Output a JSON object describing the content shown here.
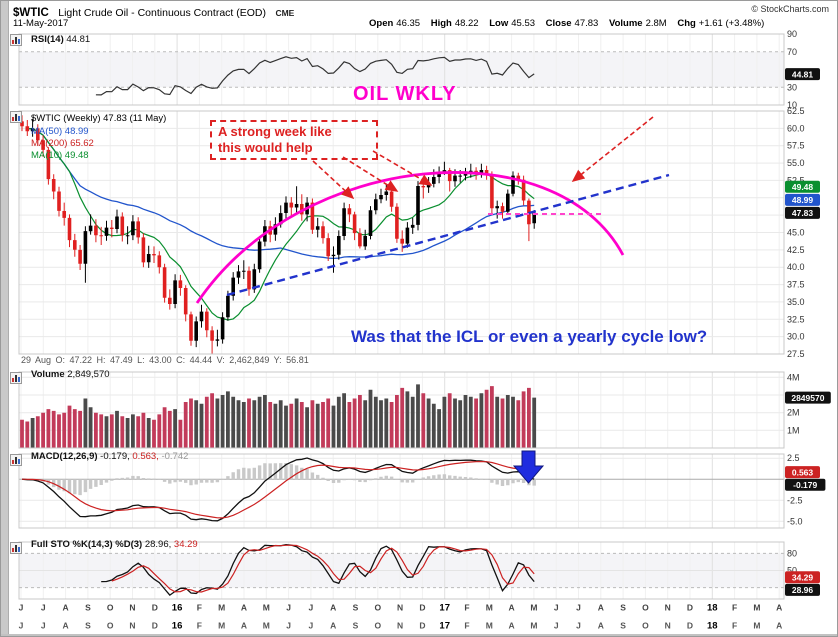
{
  "header": {
    "symbol": "$WTIC",
    "title": "Light Crude Oil - Continuous Contract (EOD)",
    "exchange": "CME",
    "copyright": "© StockCharts.com",
    "date": "11-May-2017",
    "quote": {
      "open_label": "Open",
      "open": "46.35",
      "high_label": "High",
      "high": "48.22",
      "low_label": "Low",
      "low": "45.53",
      "close_label": "Close",
      "close": "47.83",
      "volume_label": "Volume",
      "volume": "2.8M",
      "chg_label": "Chg",
      "chg": "+1.61 (+3.48%)"
    }
  },
  "rsi_panel": {
    "label": "RSI(14)",
    "value": "44.81"
  },
  "main_panel": {
    "legend_symbol": "$WTIC (Weekly) 47.83 (11 May)",
    "legend_ma50": "MA(50) 48.99",
    "legend_ma200": "MA(200) 65.62",
    "legend_ma10": "MA(10) 49.48"
  },
  "inspector": {
    "text": "29 Aug O: 47.22 H: 47.49 L: 43.00 C: 44.44 V: 2,462,849 Y: 56.81"
  },
  "volume_panel": {
    "label": "Volume",
    "value": "2,849,570"
  },
  "macd_panel": {
    "label": "MACD(12,26,9)",
    "v1": "-0.179,",
    "v2": "0.563,",
    "v3": "-0.742"
  },
  "sto_panel": {
    "label": "Full STO %K(14,3) %D(3)",
    "v1": "28.96,",
    "v2": "34.29"
  },
  "annotations": {
    "oil_wkly": "OIL WKLY",
    "strong_week_line1": "A strong week like",
    "strong_week_line2": "this would help",
    "icl_question": "Was that the ICL or even a yearly cycle low?"
  },
  "axes": {
    "rsi": {
      "labels": [
        {
          "t": "90",
          "v": 90
        },
        {
          "t": "70",
          "v": 70
        },
        {
          "t": "30",
          "v": 30
        },
        {
          "t": "10",
          "v": 10
        }
      ],
      "badges": [
        {
          "t": "44.81",
          "c": "#111111",
          "v": 44.81
        }
      ]
    },
    "main": {
      "labels": [
        {
          "t": "62.5",
          "v": 62.5
        },
        {
          "t": "60.0",
          "v": 60
        },
        {
          "t": "57.5",
          "v": 57.5
        },
        {
          "t": "55.0",
          "v": 55
        },
        {
          "t": "52.5",
          "v": 52.5
        },
        {
          "t": "45.0",
          "v": 45
        },
        {
          "t": "42.5",
          "v": 42.5
        },
        {
          "t": "40.0",
          "v": 40
        },
        {
          "t": "37.5",
          "v": 37.5
        },
        {
          "t": "35.0",
          "v": 35
        },
        {
          "t": "32.5",
          "v": 32.5
        },
        {
          "t": "30.0",
          "v": 30
        },
        {
          "t": "27.5",
          "v": 27.5
        }
      ],
      "badges": [
        {
          "t": "49.48",
          "c": "#0a8f2f",
          "v": 51.6
        },
        {
          "t": "48.99",
          "c": "#2255cc",
          "v": 49.7
        },
        {
          "t": "47.83",
          "c": "#111111",
          "v": 47.83
        }
      ]
    },
    "vol": {
      "labels": [
        {
          "t": "4M",
          "v": 4
        },
        {
          "t": "2M",
          "v": 2
        },
        {
          "t": "1M",
          "v": 1
        }
      ],
      "badges": [
        {
          "t": "2849570",
          "c": "#111111",
          "v": 2.85
        }
      ]
    },
    "macd": {
      "labels": [
        {
          "t": "2.5",
          "v": 2.5
        },
        {
          "t": "-2.5",
          "v": -2.5
        },
        {
          "t": "-5.0",
          "v": -5
        }
      ],
      "badges": [
        {
          "t": "0.563",
          "c": "#cc2222",
          "v": 0.85
        },
        {
          "t": "-0.179",
          "c": "#111111",
          "v": -0.65
        }
      ]
    },
    "sto": {
      "labels": [
        {
          "t": "80",
          "v": 80
        },
        {
          "t": "50",
          "v": 50
        },
        {
          "t": "20",
          "v": 20
        }
      ],
      "badges": [
        {
          "t": "34.29",
          "c": "#cc2222",
          "v": 38
        },
        {
          "t": "28.96",
          "c": "#111111",
          "v": 16
        }
      ]
    }
  },
  "chart_data": {
    "type": "candlestick",
    "symbol": "$WTIC",
    "timeframe": "Weekly",
    "title": "Light Crude Oil - Continuous Contract (EOD) CME",
    "price_axis_min": 27.5,
    "price_axis_max": 62.5,
    "rsi_period": 14,
    "rsi_last": 44.81,
    "ma": [
      {
        "period": 10,
        "last": 49.48,
        "color": "#0a8f2f"
      },
      {
        "period": 50,
        "last": 48.99,
        "color": "#2255cc"
      },
      {
        "period": 200,
        "last": 65.62,
        "color": "#cc2222"
      }
    ],
    "volume_last": 2849570,
    "macd": {
      "params": "12,26,9",
      "macd_last": -0.179,
      "signal_last": 0.563,
      "hist_last": -0.742
    },
    "sto": {
      "params": "%K(14,3) %D(3)",
      "k_last": 28.96,
      "d_last": 34.29
    },
    "months": [
      "J",
      "J",
      "A",
      "S",
      "O",
      "N",
      "D",
      "16",
      "F",
      "M",
      "A",
      "M",
      "J",
      "J",
      "A",
      "S",
      "O",
      "N",
      "D",
      "17",
      "F",
      "M",
      "A",
      "M",
      "J",
      "J",
      "A",
      "S",
      "O",
      "N",
      "D",
      "18",
      "F",
      "M",
      "A"
    ],
    "bold_month_indices": [
      7,
      19,
      31
    ],
    "ohlc": [
      [
        61.0,
        61.9,
        59.6,
        60.3
      ],
      [
        60.3,
        61.2,
        58.9,
        59.6
      ],
      [
        59.6,
        61.4,
        58.8,
        60.0
      ],
      [
        60.0,
        60.6,
        57.5,
        58.3
      ],
      [
        58.3,
        59.0,
        55.9,
        56.9
      ],
      [
        56.9,
        57.3,
        51.9,
        52.7
      ],
      [
        52.7,
        53.4,
        49.8,
        50.9
      ],
      [
        50.9,
        51.6,
        47.3,
        48.1
      ],
      [
        48.1,
        49.3,
        46.0,
        47.1
      ],
      [
        47.1,
        47.6,
        42.9,
        43.9
      ],
      [
        43.9,
        44.8,
        41.5,
        42.5
      ],
      [
        42.5,
        43.2,
        39.6,
        40.5
      ],
      [
        40.5,
        45.9,
        37.75,
        45.2
      ],
      [
        45.2,
        47.6,
        44.7,
        46.0
      ],
      [
        46.0,
        46.9,
        43.6,
        44.6
      ],
      [
        44.6,
        45.8,
        43.2,
        44.5
      ],
      [
        44.5,
        46.7,
        43.8,
        45.7
      ],
      [
        45.7,
        46.8,
        44.3,
        45.5
      ],
      [
        45.5,
        48.3,
        44.9,
        47.3
      ],
      [
        47.3,
        47.9,
        43.7,
        44.6
      ],
      [
        44.6,
        45.9,
        43.3,
        44.6
      ],
      [
        44.6,
        47.5,
        43.9,
        46.6
      ],
      [
        46.6,
        47.2,
        43.4,
        44.3
      ],
      [
        44.3,
        44.9,
        40.0,
        40.7
      ],
      [
        40.7,
        43.1,
        39.9,
        41.9
      ],
      [
        41.9,
        43.0,
        40.6,
        41.7
      ],
      [
        41.7,
        42.3,
        39.1,
        40.0
      ],
      [
        40.0,
        40.5,
        34.9,
        35.6
      ],
      [
        35.6,
        36.8,
        33.9,
        34.7
      ],
      [
        34.7,
        39.0,
        34.1,
        38.1
      ],
      [
        38.1,
        38.9,
        35.9,
        37.0
      ],
      [
        37.0,
        37.4,
        32.2,
        33.2
      ],
      [
        33.2,
        33.6,
        28.7,
        29.4
      ],
      [
        29.4,
        32.9,
        28.5,
        32.2
      ],
      [
        32.2,
        34.6,
        31.3,
        33.6
      ],
      [
        33.6,
        34.1,
        29.9,
        30.9
      ],
      [
        30.9,
        31.5,
        26.05,
        29.4
      ],
      [
        29.4,
        31.0,
        28.6,
        29.6
      ],
      [
        29.6,
        33.5,
        29.0,
        32.8
      ],
      [
        32.8,
        36.6,
        32.3,
        35.9
      ],
      [
        35.9,
        39.3,
        35.2,
        38.5
      ],
      [
        38.5,
        40.3,
        37.6,
        39.4
      ],
      [
        39.4,
        41.0,
        38.3,
        39.5
      ],
      [
        39.5,
        40.1,
        35.9,
        36.8
      ],
      [
        36.8,
        40.5,
        36.3,
        39.7
      ],
      [
        39.7,
        44.5,
        39.2,
        43.7
      ],
      [
        43.7,
        46.8,
        43.0,
        45.9
      ],
      [
        45.9,
        46.7,
        43.6,
        44.7
      ],
      [
        44.7,
        47.2,
        43.8,
        46.2
      ],
      [
        46.2,
        48.9,
        45.7,
        47.8
      ],
      [
        47.8,
        50.2,
        47.0,
        49.3
      ],
      [
        49.3,
        50.1,
        47.4,
        48.6
      ],
      [
        48.6,
        51.67,
        47.8,
        49.1
      ],
      [
        49.1,
        50.5,
        46.7,
        47.6
      ],
      [
        47.6,
        50.1,
        46.6,
        49.3
      ],
      [
        49.3,
        49.9,
        44.8,
        45.4
      ],
      [
        45.4,
        47.1,
        44.3,
        45.9
      ],
      [
        45.9,
        46.6,
        43.4,
        44.2
      ],
      [
        44.2,
        44.9,
        40.9,
        41.6
      ],
      [
        41.6,
        43.0,
        39.2,
        41.8
      ],
      [
        41.8,
        45.3,
        41.1,
        44.5
      ],
      [
        44.5,
        49.3,
        43.9,
        48.5
      ],
      [
        48.5,
        49.1,
        46.5,
        47.6
      ],
      [
        47.6,
        48.0,
        43.9,
        44.9
      ],
      [
        44.9,
        45.6,
        42.7,
        43.0
      ],
      [
        43.0,
        45.4,
        42.5,
        44.5
      ],
      [
        44.5,
        48.8,
        44.0,
        48.2
      ],
      [
        48.2,
        50.6,
        47.6,
        49.8
      ],
      [
        49.8,
        51.3,
        49.2,
        50.4
      ],
      [
        50.4,
        51.9,
        49.6,
        50.9
      ],
      [
        50.9,
        51.6,
        48.0,
        48.7
      ],
      [
        48.7,
        49.2,
        43.5,
        44.1
      ],
      [
        44.1,
        45.3,
        42.2,
        43.4
      ],
      [
        43.4,
        46.5,
        42.8,
        45.7
      ],
      [
        45.7,
        47.1,
        44.8,
        46.1
      ],
      [
        46.1,
        52.4,
        45.3,
        51.7
      ],
      [
        51.7,
        52.4,
        49.9,
        51.5
      ],
      [
        51.5,
        53.0,
        50.7,
        52.0
      ],
      [
        52.0,
        54.1,
        51.5,
        53.0
      ],
      [
        53.0,
        54.5,
        52.1,
        53.7
      ],
      [
        53.7,
        55.2,
        53.3,
        53.99
      ],
      [
        53.99,
        54.3,
        50.9,
        52.4
      ],
      [
        52.4,
        54.1,
        51.6,
        53.2
      ],
      [
        53.2,
        54.0,
        52.2,
        53.2
      ],
      [
        53.2,
        54.3,
        52.5,
        53.8
      ],
      [
        53.8,
        54.9,
        52.9,
        53.9
      ],
      [
        53.9,
        54.4,
        52.6,
        53.4
      ],
      [
        53.4,
        54.9,
        52.9,
        54.0
      ],
      [
        54.0,
        54.6,
        52.6,
        53.3
      ],
      [
        53.3,
        53.8,
        47.8,
        48.5
      ],
      [
        48.5,
        49.6,
        47.0,
        48.8
      ],
      [
        48.8,
        49.3,
        47.0,
        48.0
      ],
      [
        48.0,
        51.2,
        47.6,
        50.6
      ],
      [
        50.6,
        53.8,
        50.2,
        53.2
      ],
      [
        53.2,
        53.6,
        51.9,
        52.6
      ],
      [
        52.6,
        53.2,
        48.9,
        49.6
      ],
      [
        49.6,
        49.9,
        43.76,
        46.2
      ],
      [
        46.35,
        48.22,
        45.53,
        47.83
      ]
    ],
    "volumes_millions": [
      1.6,
      1.5,
      1.7,
      1.8,
      2.0,
      2.2,
      2.1,
      1.9,
      2.0,
      2.4,
      2.2,
      2.1,
      2.8,
      2.3,
      2.0,
      1.9,
      1.8,
      1.9,
      2.1,
      1.8,
      1.7,
      1.9,
      1.8,
      2.0,
      1.7,
      1.6,
      1.9,
      2.3,
      2.1,
      2.2,
      1.6,
      2.6,
      2.8,
      2.7,
      2.5,
      2.9,
      3.1,
      2.8,
      3.0,
      3.2,
      2.9,
      2.7,
      2.6,
      2.8,
      2.7,
      2.9,
      3.0,
      2.6,
      2.5,
      2.7,
      2.4,
      2.5,
      2.8,
      2.6,
      2.3,
      2.7,
      2.5,
      2.6,
      2.8,
      2.4,
      2.9,
      3.1,
      2.6,
      2.8,
      3.0,
      2.7,
      3.3,
      2.9,
      2.7,
      2.8,
      2.6,
      3.0,
      3.4,
      3.2,
      2.9,
      3.6,
      3.1,
      2.8,
      2.5,
      2.2,
      2.9,
      3.1,
      2.8,
      2.7,
      3.0,
      2.9,
      2.8,
      3.1,
      3.3,
      3.5,
      2.9,
      2.8,
      3.0,
      2.9,
      2.7,
      3.2,
      3.4,
      2.85
    ]
  }
}
